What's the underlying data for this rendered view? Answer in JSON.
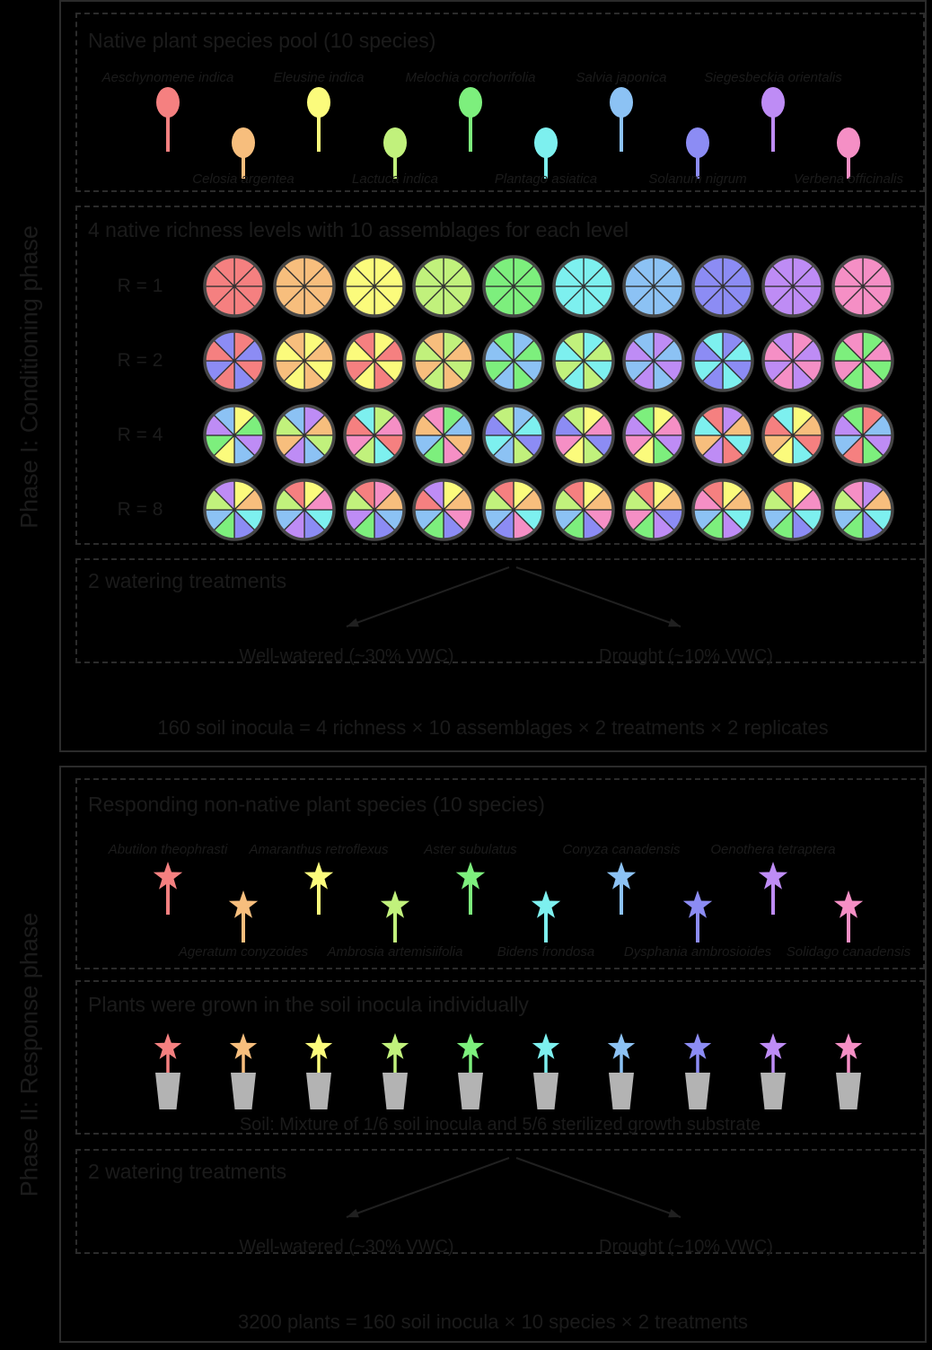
{
  "colors": {
    "background": "#000000",
    "text": "#1b1b1b",
    "border": "#2b2b2b",
    "pie_outline": "#454545",
    "pie_divider": "#303030",
    "arrow": "#202020",
    "pot": "#b3b3b3"
  },
  "palette": [
    "#F58080",
    "#F7BE7D",
    "#FBFB7C",
    "#C1F17C",
    "#7DEF7D",
    "#7DF0EF",
    "#8CC2F4",
    "#8C8CF4",
    "#BE8CF5",
    "#F58FC5"
  ],
  "phase1": {
    "label": "Phase I: Conditioning phase",
    "species_pool": {
      "title": "Native plant species pool (10 species)",
      "species": [
        {
          "name": "Aeschynomene indica",
          "color_index": 0
        },
        {
          "name": "Celosia argentea",
          "color_index": 1
        },
        {
          "name": "Eleusine indica",
          "color_index": 2
        },
        {
          "name": "Lactuca indica",
          "color_index": 3
        },
        {
          "name": "Melochia corchorifolia",
          "color_index": 4
        },
        {
          "name": "Plantago asiatica",
          "color_index": 5
        },
        {
          "name": "Salvia japonica",
          "color_index": 6
        },
        {
          "name": "Solanum nigrum",
          "color_index": 7
        },
        {
          "name": "Siegesbeckia orientalis",
          "color_index": 8
        },
        {
          "name": "Verbena officinalis",
          "color_index": 9
        }
      ]
    },
    "richness": {
      "title": "4 native richness levels with 10 assemblages for each level",
      "rows": [
        {
          "label": "R = 1",
          "pies": [
            [
              0,
              0,
              0,
              0,
              0,
              0,
              0,
              0
            ],
            [
              1,
              1,
              1,
              1,
              1,
              1,
              1,
              1
            ],
            [
              2,
              2,
              2,
              2,
              2,
              2,
              2,
              2
            ],
            [
              3,
              3,
              3,
              3,
              3,
              3,
              3,
              3
            ],
            [
              4,
              4,
              4,
              4,
              4,
              4,
              4,
              4
            ],
            [
              5,
              5,
              5,
              5,
              5,
              5,
              5,
              5
            ],
            [
              6,
              6,
              6,
              6,
              6,
              6,
              6,
              6
            ],
            [
              7,
              7,
              7,
              7,
              7,
              7,
              7,
              7
            ],
            [
              8,
              8,
              8,
              8,
              8,
              8,
              8,
              8
            ],
            [
              9,
              9,
              9,
              9,
              9,
              9,
              9,
              9
            ]
          ]
        },
        {
          "label": "R = 2",
          "pies": [
            [
              0,
              7,
              0,
              7,
              0,
              7,
              0,
              7
            ],
            [
              2,
              1,
              2,
              1,
              2,
              1,
              2,
              1
            ],
            [
              2,
              0,
              2,
              0,
              2,
              0,
              2,
              0
            ],
            [
              3,
              1,
              3,
              1,
              3,
              1,
              3,
              1
            ],
            [
              6,
              4,
              6,
              4,
              6,
              4,
              6,
              4
            ],
            [
              5,
              3,
              5,
              3,
              5,
              3,
              5,
              3
            ],
            [
              8,
              6,
              8,
              6,
              8,
              6,
              8,
              6
            ],
            [
              7,
              5,
              7,
              5,
              7,
              5,
              7,
              5
            ],
            [
              9,
              8,
              9,
              8,
              9,
              8,
              9,
              8
            ],
            [
              4,
              9,
              4,
              9,
              4,
              9,
              4,
              9
            ]
          ]
        },
        {
          "label": "R = 4",
          "pies": [
            [
              2,
              4,
              8,
              6,
              2,
              4,
              8,
              6
            ],
            [
              8,
              1,
              3,
              6,
              8,
              1,
              3,
              6
            ],
            [
              3,
              9,
              0,
              5,
              3,
              9,
              0,
              5
            ],
            [
              4,
              6,
              1,
              9,
              4,
              6,
              1,
              9
            ],
            [
              6,
              5,
              7,
              3,
              6,
              5,
              7,
              3
            ],
            [
              2,
              9,
              7,
              3,
              2,
              9,
              7,
              3
            ],
            [
              2,
              9,
              8,
              4,
              2,
              9,
              8,
              4
            ],
            [
              8,
              1,
              5,
              0,
              8,
              1,
              5,
              0
            ],
            [
              2,
              1,
              0,
              5,
              2,
              1,
              0,
              5
            ],
            [
              0,
              6,
              8,
              4,
              0,
              6,
              8,
              4
            ]
          ]
        },
        {
          "label": "R = 8",
          "pies": [
            [
              2,
              1,
              5,
              7,
              4,
              6,
              3,
              8
            ],
            [
              2,
              9,
              5,
              7,
              8,
              6,
              3,
              0
            ],
            [
              9,
              1,
              6,
              7,
              4,
              8,
              3,
              0
            ],
            [
              2,
              1,
              9,
              7,
              4,
              6,
              0,
              8
            ],
            [
              2,
              1,
              5,
              9,
              7,
              6,
              3,
              0
            ],
            [
              2,
              1,
              9,
              7,
              4,
              6,
              3,
              0
            ],
            [
              2,
              1,
              7,
              8,
              4,
              9,
              3,
              0
            ],
            [
              2,
              1,
              5,
              8,
              4,
              6,
              9,
              0
            ],
            [
              2,
              9,
              5,
              7,
              4,
              6,
              3,
              0
            ],
            [
              8,
              1,
              5,
              7,
              4,
              6,
              3,
              9
            ]
          ]
        }
      ]
    },
    "watering": {
      "title": "2 watering treatments",
      "left": "Well-watered (~30% VWC)",
      "right": "Drought (~10% VWC)"
    },
    "formula": "160 soil inocula = 4 richness × 10 assemblages × 2 treatments × 2 replicates"
  },
  "phase2": {
    "label": "Phase II: Response phase",
    "species_pool": {
      "title": "Responding non-native plant species (10 species)",
      "species": [
        {
          "name": "Abutilon theophrasti",
          "color_index": 0
        },
        {
          "name": "Ageratum conyzoides",
          "color_index": 1
        },
        {
          "name": "Amaranthus retroflexus",
          "color_index": 2
        },
        {
          "name": "Ambrosia artemisiifolia",
          "color_index": 3
        },
        {
          "name": "Aster subulatus",
          "color_index": 4
        },
        {
          "name": "Bidens frondosa",
          "color_index": 5
        },
        {
          "name": "Conyza canadensis",
          "color_index": 6
        },
        {
          "name": "Dysphania ambrosioides",
          "color_index": 7
        },
        {
          "name": "Oenothera tetraptera",
          "color_index": 8
        },
        {
          "name": "Solidago canadensis",
          "color_index": 9
        }
      ]
    },
    "grown": {
      "title": "Plants were grown in the soil inocula individually",
      "soil_note": "Soil: Mixture of 1/6 soil inocula and 5/6 sterilized growth substrate"
    },
    "watering": {
      "title": "2 watering treatments",
      "left": "Well-watered (~30% VWC)",
      "right": "Drought (~10% VWC)"
    },
    "formula": "3200 plants = 160 soil inocula × 10 species × 2 treatments"
  }
}
